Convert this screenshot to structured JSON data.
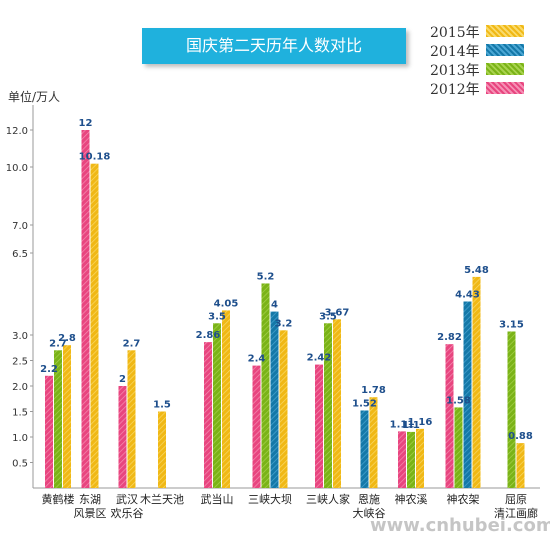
{
  "chart_data": {
    "type": "bar",
    "title": "国庆第二天历年人数对比",
    "ylabel": "单位/万人",
    "y_tick_labels": [
      "0.5",
      "1.0",
      "1.5",
      "2.0",
      "2.5",
      "3.0",
      "6.5",
      "7.0",
      "10.0",
      "12.0"
    ],
    "y_ticks": [
      0.5,
      1.0,
      1.5,
      2.0,
      2.5,
      3.0,
      6.5,
      7.0,
      10.0,
      12.0
    ],
    "ylim": [
      0,
      12.5
    ],
    "y_scale": "piecewise-nonlinear",
    "grid": false,
    "legend_position": "top-right",
    "categories": [
      [
        "黄鹤楼"
      ],
      [
        "东湖",
        "风景区"
      ],
      [
        "武汉",
        "欢乐谷"
      ],
      [
        "木兰天池"
      ],
      [
        "武当山"
      ],
      [
        "三峡大坝"
      ],
      [
        "三峡人家"
      ],
      [
        "恩施",
        "大峡谷"
      ],
      [
        "神农溪"
      ],
      [
        "神农架"
      ],
      [
        "屈原",
        "清江画廊"
      ]
    ],
    "series": [
      {
        "name": "2012年",
        "color": "#e8457f",
        "values": [
          2.2,
          12,
          2,
          null,
          2.86,
          2.4,
          2.42,
          null,
          1.11,
          2.82,
          null
        ],
        "labels": [
          "2.2",
          "12",
          "2",
          "",
          "2.86",
          "2.4",
          "2.42",
          "",
          "1.11",
          "2.82",
          ""
        ]
      },
      {
        "name": "2013年",
        "color": "#7ab317",
        "values": [
          2.7,
          null,
          null,
          null,
          3.5,
          5.2,
          3.5,
          null,
          1.1,
          1.58,
          3.15
        ],
        "labels": [
          "2.7",
          "",
          "",
          "",
          "3.5",
          "5.2",
          "3.5",
          "",
          "1.1",
          "1.58",
          "3.15"
        ]
      },
      {
        "name": "2014年",
        "color": "#1478a8",
        "values": [
          null,
          null,
          null,
          null,
          null,
          4,
          null,
          1.52,
          null,
          4.43,
          null
        ],
        "labels": [
          "",
          "",
          "",
          "",
          "",
          "4",
          "",
          "1.52",
          "",
          "4.43",
          ""
        ]
      },
      {
        "name": "2015年",
        "color": "#f0b815",
        "values": [
          2.8,
          10.18,
          2.7,
          1.5,
          4.05,
          3.2,
          3.67,
          1.78,
          1.16,
          5.48,
          0.88
        ],
        "labels": [
          "2.8",
          "10.18",
          "2.7",
          "1.5",
          "4.05",
          "3.2",
          "3.67",
          "1.78",
          "1.16",
          "5.48",
          "0.88"
        ]
      }
    ],
    "legend_order": [
      "2015年",
      "2014年",
      "2013年",
      "2012年"
    ]
  },
  "watermark": "www.cnhubei.com"
}
